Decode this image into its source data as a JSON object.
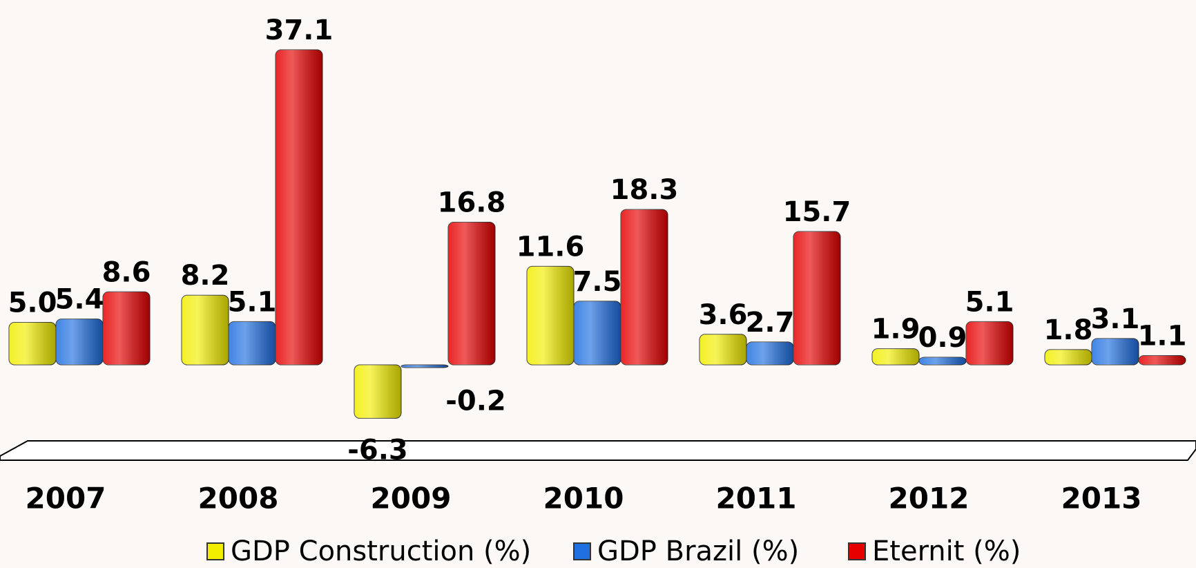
{
  "chart_data": {
    "type": "bar",
    "categories": [
      "2007",
      "2008",
      "2009",
      "2010",
      "2011",
      "2012",
      "2013"
    ],
    "series": [
      {
        "name": "GDP Construction (%)",
        "color": "#f2ee00",
        "values": [
          5.0,
          8.2,
          -6.3,
          11.6,
          3.6,
          1.9,
          1.8
        ],
        "value_labels": [
          "5.0",
          "8.2",
          "-6.3",
          "11.6",
          "3.6",
          "1.9",
          "1.8"
        ]
      },
      {
        "name": "GDP Brazil (%)",
        "color": "#1f6fe0",
        "values": [
          5.4,
          5.1,
          -0.2,
          7.5,
          2.7,
          0.9,
          3.1
        ],
        "value_labels": [
          "5.4",
          "5.1",
          "-0.2",
          "7.5",
          "2.7",
          "0.9",
          "3.1"
        ]
      },
      {
        "name": "Eternit (%)",
        "color": "#e60000",
        "values": [
          8.6,
          37.1,
          16.8,
          18.3,
          15.7,
          5.1,
          1.1
        ],
        "value_labels": [
          "8.6",
          "37.1",
          "16.8",
          "18.3",
          "15.7",
          "5.1",
          "1.1"
        ]
      }
    ],
    "legend": "bottom"
  }
}
